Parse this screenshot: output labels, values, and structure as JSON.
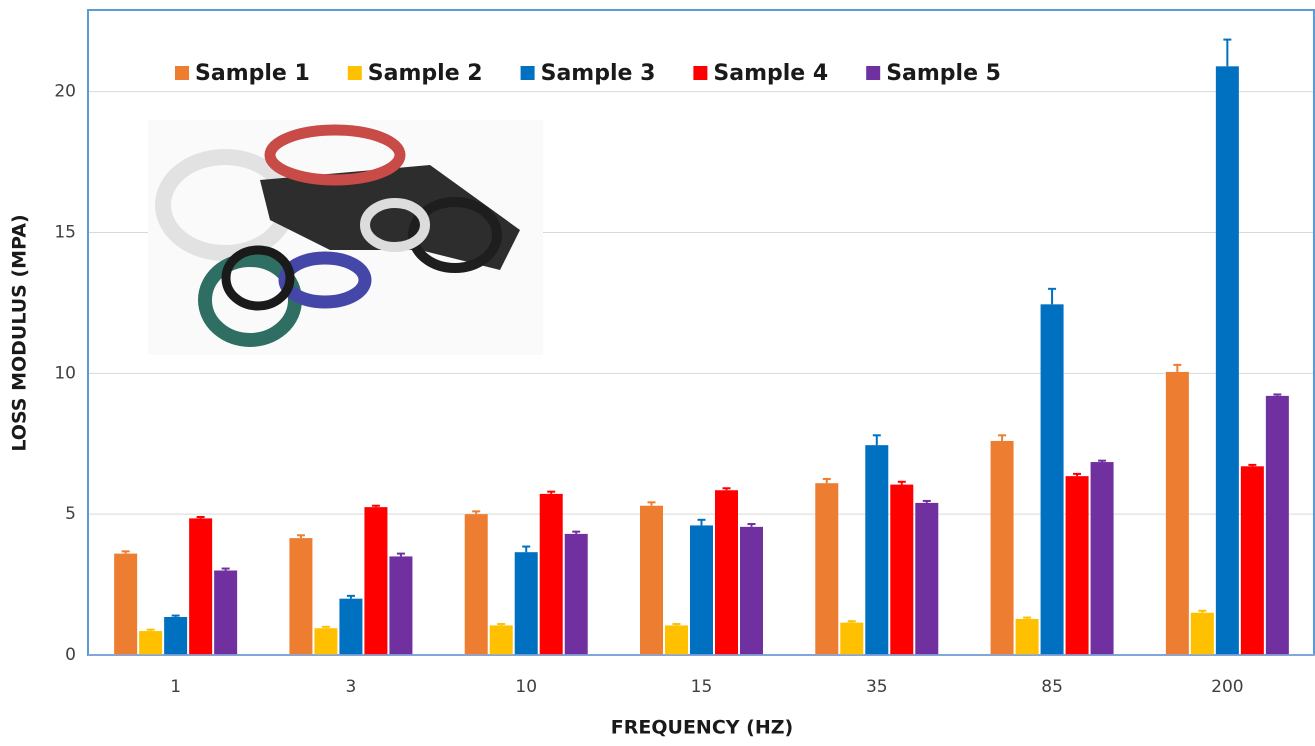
{
  "chart_data": {
    "type": "bar",
    "x_label": "FREQUENCY (HZ)",
    "y_label": "LOSS MODULUS (MPA)",
    "categories": [
      "1",
      "3",
      "10",
      "15",
      "35",
      "85",
      "200"
    ],
    "series": [
      {
        "name": "Sample 1",
        "color": "#ed7d31",
        "values": [
          3.6,
          4.15,
          5.0,
          5.3,
          6.1,
          7.6,
          10.05
        ],
        "errors": [
          0.08,
          0.1,
          0.1,
          0.12,
          0.15,
          0.2,
          0.25
        ]
      },
      {
        "name": "Sample 2",
        "color": "#ffc000",
        "values": [
          0.85,
          0.95,
          1.05,
          1.05,
          1.15,
          1.28,
          1.5
        ],
        "errors": [
          0.05,
          0.05,
          0.05,
          0.05,
          0.05,
          0.05,
          0.07
        ]
      },
      {
        "name": "Sample 3",
        "color": "#0070c0",
        "values": [
          1.35,
          2.0,
          3.65,
          4.6,
          7.45,
          12.45,
          20.9
        ],
        "errors": [
          0.05,
          0.1,
          0.2,
          0.2,
          0.35,
          0.55,
          0.95
        ]
      },
      {
        "name": "Sample 4",
        "color": "#ff0000",
        "values": [
          4.85,
          5.25,
          5.72,
          5.85,
          6.05,
          6.35,
          6.7
        ],
        "errors": [
          0.05,
          0.05,
          0.08,
          0.07,
          0.1,
          0.08,
          0.05
        ]
      },
      {
        "name": "Sample 5",
        "color": "#7030a0",
        "values": [
          3.0,
          3.5,
          4.3,
          4.55,
          5.4,
          6.85,
          9.2
        ],
        "errors": [
          0.07,
          0.1,
          0.08,
          0.1,
          0.07,
          0.05,
          0.05
        ]
      }
    ],
    "ylim": [
      0,
      22.9
    ],
    "yticks": [
      0,
      5,
      10,
      15,
      20
    ],
    "grid": true,
    "legend": "top"
  }
}
